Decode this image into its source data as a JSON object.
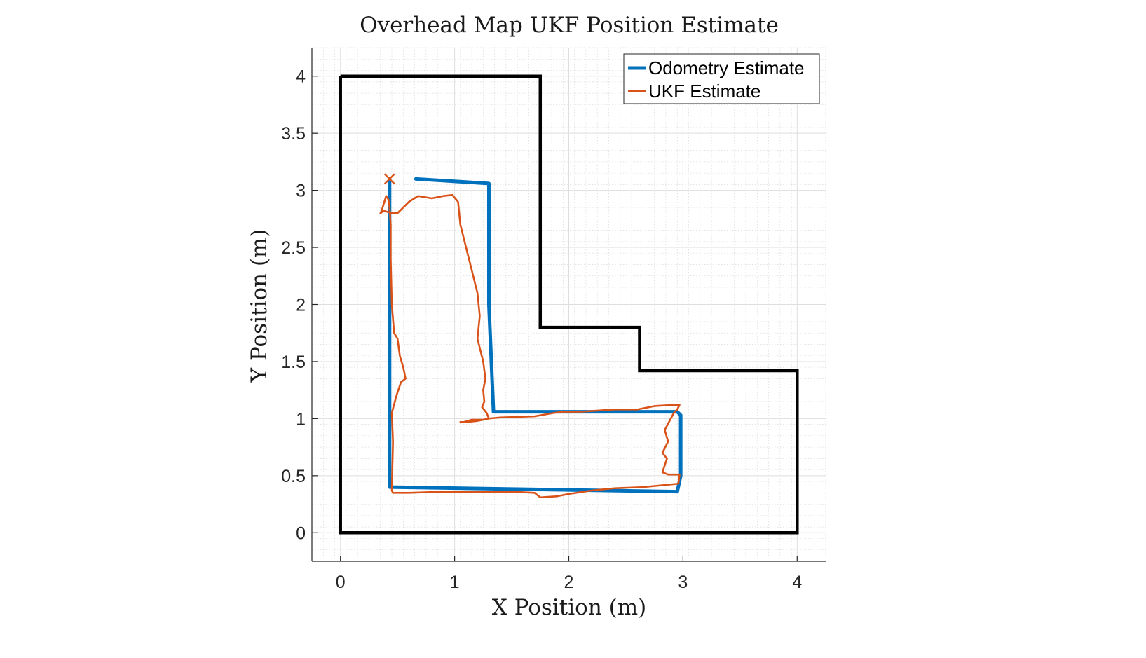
{
  "chart_data": {
    "type": "line",
    "title": "Overhead Map UKF Position Estimate",
    "xlabel": "X Position (m)",
    "ylabel": "Y Position (m)",
    "xlim": [
      -0.25,
      4.25
    ],
    "ylim": [
      -0.25,
      4.25
    ],
    "xticks": [
      0,
      1,
      2,
      3,
      4
    ],
    "xtick_labels": [
      "0",
      "1",
      "2",
      "3",
      "4"
    ],
    "yticks": [
      0,
      0.5,
      1,
      1.5,
      2,
      2.5,
      3,
      3.5,
      4
    ],
    "ytick_labels": [
      "0",
      "0.5",
      "1",
      "1.5",
      "2",
      "2.5",
      "3",
      "3.5",
      "4"
    ],
    "grid": true,
    "minor_grid": true,
    "legend_position": "top-right",
    "map_boundary": {
      "color": "#000000",
      "x": [
        0,
        1.75,
        1.75,
        2.62,
        2.62,
        4,
        4,
        0,
        0
      ],
      "y": [
        4,
        4,
        1.8,
        1.8,
        1.42,
        1.42,
        0,
        0,
        4
      ]
    },
    "series": [
      {
        "name": "Odometry Estimate",
        "color": "#0072BD",
        "x": [
          0.66,
          1.3,
          1.3,
          1.34,
          1.34,
          2.95,
          2.98,
          2.98,
          2.95,
          0.43,
          0.43,
          0.43
        ],
        "y": [
          3.1,
          3.06,
          2.0,
          1.07,
          1.06,
          1.06,
          1.03,
          0.5,
          0.36,
          0.4,
          2.0,
          3.1
        ]
      },
      {
        "name": "UKF Estimate",
        "color": "#D95319",
        "marker_end": "x",
        "x": [
          1.08,
          1.15,
          1.25,
          1.29,
          1.4,
          1.7,
          1.87,
          1.95,
          2.1,
          2.4,
          2.6,
          2.75,
          2.92,
          2.97,
          2.95,
          2.92,
          2.84,
          2.87,
          2.82,
          2.86,
          2.82,
          2.87,
          2.97,
          2.96,
          2.65,
          2.4,
          2.2,
          2.0,
          1.9,
          1.75,
          1.7,
          1.5,
          1.2,
          0.9,
          0.6,
          0.46,
          0.45,
          0.46,
          0.45,
          0.49,
          0.53,
          0.57,
          0.55,
          0.52,
          0.5,
          0.47,
          0.45,
          0.44,
          0.44,
          0.43,
          0.42,
          0.4,
          0.36,
          0.35,
          0.38,
          0.45,
          0.5,
          0.55,
          0.6,
          0.68,
          0.8,
          0.9,
          0.98,
          1.03,
          1.05,
          1.1,
          1.15,
          1.2,
          1.22,
          1.2,
          1.25,
          1.27,
          1.25,
          1.26,
          1.24,
          1.28,
          1.3,
          1.25,
          1.2,
          1.1,
          1.05
        ],
        "y": [
          0.97,
          0.99,
          0.99,
          1.0,
          1.01,
          1.02,
          1.05,
          1.06,
          1.06,
          1.08,
          1.08,
          1.11,
          1.12,
          1.12,
          1.08,
          1.05,
          0.9,
          0.8,
          0.7,
          0.65,
          0.53,
          0.51,
          0.51,
          0.43,
          0.4,
          0.39,
          0.37,
          0.34,
          0.32,
          0.31,
          0.35,
          0.36,
          0.36,
          0.36,
          0.35,
          0.35,
          0.37,
          0.8,
          1.05,
          1.2,
          1.32,
          1.35,
          1.45,
          1.55,
          1.7,
          1.75,
          2.0,
          2.4,
          2.7,
          2.85,
          2.92,
          2.95,
          2.82,
          2.8,
          2.82,
          2.8,
          2.8,
          2.85,
          2.9,
          2.95,
          2.93,
          2.95,
          2.96,
          2.9,
          2.7,
          2.5,
          2.3,
          2.1,
          1.9,
          1.7,
          1.5,
          1.35,
          1.25,
          1.15,
          1.1,
          1.05,
          1.0,
          0.99,
          0.98,
          0.97,
          0.97
        ]
      }
    ],
    "start_marker": {
      "symbol": "x",
      "x": 0.43,
      "y": 3.1,
      "color": "#D95319"
    }
  }
}
